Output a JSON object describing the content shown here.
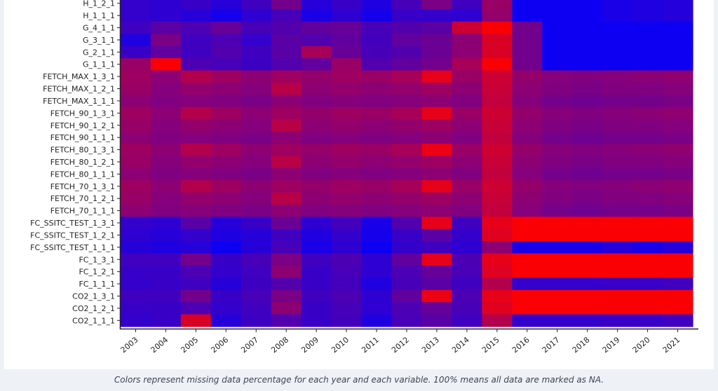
{
  "chart_data": {
    "type": "heatmap",
    "title": "",
    "xlabel": "",
    "ylabel": "",
    "years": [
      "2003",
      "2004",
      "2005",
      "2006",
      "2007",
      "2008",
      "2009",
      "2010",
      "2011",
      "2012",
      "2013",
      "2014",
      "2015",
      "2016",
      "2017",
      "2018",
      "2019",
      "2020",
      "2021"
    ],
    "variables": [
      "H_1_2_1",
      "H_1_1_1",
      "G_4_1_1",
      "G_3_1_1",
      "G_2_1_1",
      "G_1_1_1",
      "FETCH_MAX_1_3_1",
      "FETCH_MAX_1_2_1",
      "FETCH_MAX_1_1_1",
      "FETCH_90_1_3_1",
      "FETCH_90_1_2_1",
      "FETCH_90_1_1_1",
      "FETCH_80_1_3_1",
      "FETCH_80_1_2_1",
      "FETCH_80_1_1_1",
      "FETCH_70_1_3_1",
      "FETCH_70_1_2_1",
      "FETCH_70_1_1_1",
      "FC_SSITC_TEST_1_3_1",
      "FC_SSITC_TEST_1_2_1",
      "FC_SSITC_TEST_1_1_1",
      "FC_1_3_1",
      "FC_1_2_1",
      "FC_1_1_1",
      "CO2_1_3_1",
      "CO2_1_2_1",
      "CO2_1_1_1"
    ],
    "value_unit": "missing data percentage (0-100)",
    "color_scale": {
      "low": "#0000ff",
      "high": "#ff0000"
    },
    "values": [
      [
        20,
        18,
        22,
        15,
        25,
        45,
        15,
        22,
        12,
        28,
        48,
        25,
        60,
        5,
        5,
        5,
        10,
        12,
        14
      ],
      [
        20,
        18,
        15,
        8,
        18,
        28,
        10,
        18,
        8,
        22,
        20,
        18,
        58,
        5,
        5,
        5,
        10,
        12,
        14
      ],
      [
        25,
        35,
        30,
        40,
        28,
        32,
        38,
        40,
        28,
        32,
        35,
        80,
        98,
        45,
        5,
        5,
        5,
        5,
        5
      ],
      [
        12,
        48,
        25,
        30,
        20,
        35,
        32,
        38,
        26,
        38,
        42,
        55,
        85,
        45,
        5,
        5,
        5,
        5,
        5
      ],
      [
        22,
        38,
        25,
        32,
        25,
        35,
        65,
        40,
        28,
        32,
        42,
        55,
        85,
        45,
        5,
        5,
        5,
        5,
        5
      ],
      [
        60,
        98,
        30,
        28,
        24,
        32,
        38,
        60,
        32,
        38,
        45,
        65,
        98,
        45,
        5,
        5,
        5,
        5,
        5
      ],
      [
        62,
        55,
        70,
        62,
        55,
        62,
        58,
        62,
        60,
        65,
        90,
        60,
        80,
        58,
        52,
        50,
        52,
        54,
        56
      ],
      [
        60,
        52,
        58,
        55,
        52,
        72,
        55,
        58,
        55,
        58,
        62,
        55,
        78,
        55,
        50,
        48,
        50,
        50,
        52
      ],
      [
        55,
        50,
        52,
        50,
        48,
        55,
        50,
        52,
        50,
        52,
        55,
        50,
        76,
        52,
        46,
        44,
        46,
        46,
        48
      ],
      [
        62,
        55,
        70,
        62,
        55,
        62,
        58,
        62,
        60,
        65,
        90,
        60,
        80,
        58,
        52,
        50,
        52,
        54,
        56
      ],
      [
        60,
        52,
        58,
        55,
        52,
        72,
        55,
        58,
        55,
        58,
        62,
        55,
        78,
        55,
        50,
        48,
        50,
        50,
        52
      ],
      [
        55,
        50,
        52,
        50,
        48,
        55,
        50,
        52,
        50,
        52,
        55,
        50,
        76,
        52,
        46,
        44,
        46,
        46,
        48
      ],
      [
        62,
        55,
        70,
        62,
        55,
        62,
        58,
        62,
        60,
        65,
        92,
        60,
        80,
        58,
        52,
        50,
        52,
        54,
        56
      ],
      [
        60,
        52,
        58,
        55,
        52,
        72,
        55,
        58,
        55,
        58,
        62,
        55,
        78,
        55,
        50,
        48,
        50,
        50,
        52
      ],
      [
        55,
        50,
        52,
        50,
        48,
        55,
        50,
        52,
        50,
        52,
        55,
        50,
        76,
        52,
        46,
        44,
        46,
        46,
        48
      ],
      [
        62,
        55,
        70,
        62,
        55,
        62,
        58,
        62,
        60,
        65,
        90,
        60,
        80,
        58,
        52,
        50,
        52,
        54,
        56
      ],
      [
        60,
        52,
        58,
        55,
        52,
        72,
        55,
        58,
        55,
        58,
        62,
        55,
        78,
        55,
        50,
        48,
        50,
        50,
        52
      ],
      [
        55,
        50,
        52,
        50,
        48,
        55,
        50,
        52,
        50,
        52,
        55,
        50,
        76,
        52,
        46,
        44,
        46,
        46,
        48
      ],
      [
        20,
        18,
        35,
        15,
        22,
        42,
        18,
        26,
        10,
        32,
        90,
        25,
        90,
        98,
        98,
        98,
        98,
        98,
        98
      ],
      [
        18,
        15,
        20,
        12,
        15,
        25,
        12,
        20,
        8,
        22,
        35,
        20,
        88,
        98,
        98,
        98,
        98,
        98,
        98
      ],
      [
        15,
        12,
        15,
        5,
        15,
        28,
        10,
        18,
        5,
        20,
        25,
        18,
        55,
        10,
        10,
        10,
        15,
        10,
        15
      ],
      [
        25,
        25,
        45,
        22,
        28,
        48,
        25,
        30,
        18,
        38,
        90,
        30,
        90,
        98,
        98,
        98,
        98,
        98,
        98
      ],
      [
        22,
        22,
        30,
        20,
        25,
        55,
        22,
        28,
        18,
        30,
        40,
        28,
        88,
        98,
        98,
        98,
        98,
        98,
        98
      ],
      [
        20,
        22,
        25,
        15,
        24,
        32,
        22,
        26,
        12,
        28,
        35,
        25,
        70,
        20,
        20,
        20,
        22,
        22,
        25
      ],
      [
        25,
        25,
        45,
        22,
        28,
        48,
        25,
        30,
        18,
        38,
        92,
        30,
        90,
        98,
        98,
        98,
        98,
        98,
        98
      ],
      [
        22,
        22,
        30,
        20,
        25,
        55,
        22,
        28,
        18,
        30,
        40,
        28,
        88,
        98,
        98,
        98,
        98,
        98,
        98
      ],
      [
        20,
        22,
        85,
        15,
        24,
        32,
        22,
        26,
        12,
        28,
        35,
        25,
        70,
        20,
        20,
        20,
        22,
        22,
        25
      ]
    ]
  },
  "caption": "Colors represent missing data percentage for each year and each variable. 100% means all data are marked as NA."
}
